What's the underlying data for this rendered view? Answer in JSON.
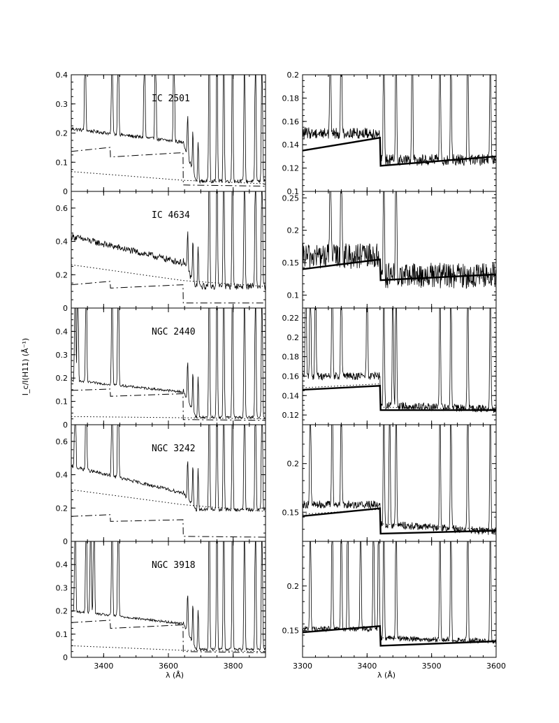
{
  "figure": {
    "ylabel": "I_c/I(H11) (Å⁻¹)",
    "xlabel_left": "λ (Å)",
    "xlabel_right": "λ (Å)"
  },
  "chart_data": [
    {
      "type": "line",
      "column": "left",
      "row": 0,
      "label": "IC 2501",
      "xlim": [
        3300,
        3900
      ],
      "ylim": [
        0,
        0.4
      ],
      "yticks": [
        0,
        0.1,
        0.2,
        0.3,
        0.4
      ],
      "ytick_labels": [
        "0",
        "0.1",
        "0.2",
        "0.3",
        "0.4"
      ],
      "xticks": [
        3400,
        3600,
        3800
      ],
      "xtick_labels": [],
      "spectrum": {
        "cont_start": 0.215,
        "cont_jump_3646": 0.168,
        "cont_end": 0.035,
        "noise": 0.006
      },
      "emission_lines": [
        3343,
        3426,
        3445,
        3526,
        3560,
        3617,
        3726,
        3750,
        3771,
        3798,
        3835,
        3869,
        3889
      ],
      "series": [
        {
          "style": "dotted",
          "x": [
            3300,
            3645,
            3900
          ],
          "y": [
            0.068,
            0.038,
            0.026
          ]
        },
        {
          "style": "dash-dot",
          "x": [
            3300,
            3420,
            3421,
            3645,
            3646,
            3900
          ],
          "y": [
            0.137,
            0.151,
            0.118,
            0.133,
            0.022,
            0.018
          ]
        }
      ]
    },
    {
      "type": "line",
      "column": "left",
      "row": 1,
      "label": "IC 4634",
      "xlim": [
        3300,
        3900
      ],
      "ylim": [
        0,
        0.7
      ],
      "yticks": [
        0,
        0.2,
        0.4,
        0.6
      ],
      "ytick_labels": [
        "0",
        "0.2",
        "0.4",
        "0.6"
      ],
      "xticks": [
        3400,
        3600,
        3800
      ],
      "xtick_labels": [],
      "spectrum": {
        "cont_start": 0.43,
        "cont_jump_3646": 0.27,
        "cont_end": 0.13,
        "noise": 0.02
      },
      "emission_lines": [
        3726,
        3750,
        3771,
        3798,
        3835,
        3869,
        3889
      ],
      "series": [
        {
          "style": "dotted",
          "x": [
            3300,
            3645,
            3900
          ],
          "y": [
            0.26,
            0.165,
            0.13
          ]
        },
        {
          "style": "dash-dot",
          "x": [
            3300,
            3420,
            3421,
            3645,
            3646,
            3900
          ],
          "y": [
            0.14,
            0.16,
            0.12,
            0.14,
            0.03,
            0.03
          ]
        }
      ]
    },
    {
      "type": "line",
      "column": "left",
      "row": 2,
      "label": "NGC 2440",
      "xlim": [
        3300,
        3900
      ],
      "ylim": [
        0,
        0.5
      ],
      "yticks": [
        0,
        0.1,
        0.2,
        0.3,
        0.4
      ],
      "ytick_labels": [
        "0",
        "0.1",
        "0.2",
        "0.3",
        "0.4"
      ],
      "xticks": [
        3400,
        3600,
        3800
      ],
      "xtick_labels": [],
      "spectrum": {
        "cont_start": 0.19,
        "cont_jump_3646": 0.14,
        "cont_end": 0.032,
        "noise": 0.005
      },
      "emission_lines": [
        3312,
        3320,
        3346,
        3426,
        3445,
        3726,
        3750,
        3771,
        3798,
        3835,
        3869,
        3889
      ],
      "series": [
        {
          "style": "dotted",
          "x": [
            3300,
            3645,
            3900
          ],
          "y": [
            0.035,
            0.03,
            0.025
          ]
        },
        {
          "style": "dash-dot",
          "x": [
            3300,
            3420,
            3421,
            3645,
            3646,
            3900
          ],
          "y": [
            0.147,
            0.153,
            0.122,
            0.133,
            0.022,
            0.019
          ]
        }
      ]
    },
    {
      "type": "line",
      "column": "left",
      "row": 3,
      "label": "NGC 3242",
      "xlim": [
        3300,
        3900
      ],
      "ylim": [
        0,
        0.7
      ],
      "yticks": [
        0,
        0.2,
        0.4,
        0.6
      ],
      "ytick_labels": [
        "0",
        "0.2",
        "0.4",
        "0.6"
      ],
      "xticks": [
        3400,
        3600,
        3800
      ],
      "xtick_labels": [],
      "spectrum": {
        "cont_start": 0.45,
        "cont_jump_3646": 0.29,
        "cont_end": 0.19,
        "noise": 0.01
      },
      "emission_lines": [
        3312,
        3346,
        3426,
        3445,
        3726,
        3750,
        3771,
        3798,
        3835,
        3869,
        3889
      ],
      "series": [
        {
          "style": "dotted",
          "x": [
            3300,
            3645,
            3900
          ],
          "y": [
            0.31,
            0.22,
            0.18
          ]
        },
        {
          "style": "dash-dot",
          "x": [
            3300,
            3420,
            3421,
            3645,
            3646,
            3900
          ],
          "y": [
            0.15,
            0.16,
            0.12,
            0.13,
            0.03,
            0.025
          ]
        }
      ]
    },
    {
      "type": "line",
      "column": "left",
      "row": 4,
      "label": "NGC 3918",
      "xlim": [
        3300,
        3900
      ],
      "ylim": [
        0,
        0.5
      ],
      "yticks": [
        0,
        0.1,
        0.2,
        0.3,
        0.4
      ],
      "ytick_labels": [
        "0",
        "0.1",
        "0.2",
        "0.3",
        "0.4"
      ],
      "xticks": [
        3400,
        3600,
        3800
      ],
      "xtick_labels": [
        "3400",
        "3600",
        "3800"
      ],
      "spectrum": {
        "cont_start": 0.2,
        "cont_jump_3646": 0.145,
        "cont_end": 0.035,
        "noise": 0.005
      },
      "emission_lines": [
        3312,
        3346,
        3360,
        3370,
        3426,
        3445,
        3726,
        3750,
        3771,
        3798,
        3835,
        3869,
        3889
      ],
      "series": [
        {
          "style": "dotted",
          "x": [
            3300,
            3645,
            3900
          ],
          "y": [
            0.05,
            0.03,
            0.025
          ]
        },
        {
          "style": "dash-dot",
          "x": [
            3300,
            3420,
            3421,
            3645,
            3646,
            3900
          ],
          "y": [
            0.15,
            0.16,
            0.125,
            0.14,
            0.025,
            0.02
          ]
        }
      ]
    },
    {
      "type": "line",
      "column": "right",
      "row": 0,
      "label": "",
      "xlim": [
        3300,
        3600
      ],
      "ylim": [
        0.1,
        0.2
      ],
      "yticks": [
        0.1,
        0.12,
        0.14,
        0.16,
        0.18,
        0.2
      ],
      "ytick_labels": [
        "0.1",
        "0.12",
        "0.14",
        "0.16",
        "0.18",
        "0.2"
      ],
      "xticks": [
        3300,
        3400,
        3500,
        3600
      ],
      "xtick_labels": [],
      "spectrum": {
        "base": 0.15,
        "after_jump": 0.127,
        "end": 0.127,
        "noise": 0.005
      },
      "emission_lines": [
        3343,
        3360,
        3426,
        3445,
        3470,
        3513,
        3530,
        3556,
        3591
      ],
      "series": [
        {
          "style": "thick",
          "x": [
            3300,
            3420,
            3421,
            3600
          ],
          "y": [
            0.135,
            0.146,
            0.122,
            0.13
          ]
        }
      ]
    },
    {
      "type": "line",
      "column": "right",
      "row": 1,
      "label": "",
      "xlim": [
        3300,
        3600
      ],
      "ylim": [
        0.08,
        0.26
      ],
      "yticks": [
        0.1,
        0.15,
        0.2,
        0.25
      ],
      "ytick_labels": [
        "0.1",
        "0.15",
        "0.2",
        "0.25"
      ],
      "xticks": [
        3300,
        3400,
        3500,
        3600
      ],
      "xtick_labels": [],
      "spectrum": {
        "base": 0.16,
        "after_jump": 0.13,
        "end": 0.13,
        "noise": 0.02
      },
      "emission_lines": [
        3343,
        3360,
        3426,
        3445
      ],
      "series": [
        {
          "style": "thick",
          "x": [
            3300,
            3420,
            3421,
            3600
          ],
          "y": [
            0.14,
            0.155,
            0.123,
            0.132
          ]
        }
      ]
    },
    {
      "type": "line",
      "column": "right",
      "row": 2,
      "label": "",
      "xlim": [
        3300,
        3600
      ],
      "ylim": [
        0.11,
        0.23
      ],
      "yticks": [
        0.12,
        0.14,
        0.16,
        0.18,
        0.2,
        0.22
      ],
      "ytick_labels": [
        "0.12",
        "0.14",
        "0.16",
        "0.18",
        "0.2",
        "0.22"
      ],
      "xticks": [
        3300,
        3400,
        3500,
        3600
      ],
      "xtick_labels": [],
      "spectrum": {
        "base": 0.16,
        "after_jump": 0.13,
        "end": 0.126,
        "noise": 0.004
      },
      "emission_lines": [
        3305,
        3312,
        3320,
        3346,
        3360,
        3400,
        3426,
        3440,
        3445,
        3513,
        3530,
        3556,
        3591
      ],
      "series": [
        {
          "style": "dotted",
          "x": [
            3300,
            3420,
            3421,
            3600
          ],
          "y": [
            0.148,
            0.152,
            0.128,
            0.126
          ]
        },
        {
          "style": "thick",
          "x": [
            3300,
            3420,
            3421,
            3600
          ],
          "y": [
            0.146,
            0.15,
            0.125,
            0.125
          ]
        }
      ]
    },
    {
      "type": "line",
      "column": "right",
      "row": 3,
      "label": "",
      "xlim": [
        3300,
        3600
      ],
      "ylim": [
        0.12,
        0.24
      ],
      "yticks": [
        0.15,
        0.2
      ],
      "ytick_labels": [
        "0.15",
        "0.2"
      ],
      "xticks": [
        3300,
        3400,
        3500,
        3600
      ],
      "xtick_labels": [],
      "spectrum": {
        "base": 0.158,
        "after_jump": 0.138,
        "end": 0.13,
        "noise": 0.004
      },
      "emission_lines": [
        3312,
        3346,
        3360,
        3426,
        3435,
        3445,
        3513,
        3530,
        3556,
        3591
      ],
      "series": [
        {
          "style": "dotted",
          "x": [
            3300,
            3420,
            3421,
            3600
          ],
          "y": [
            0.148,
            0.153,
            0.138,
            0.132
          ]
        },
        {
          "style": "thick",
          "x": [
            3300,
            3420,
            3421,
            3600
          ],
          "y": [
            0.146,
            0.154,
            0.128,
            0.131
          ]
        }
      ]
    },
    {
      "type": "line",
      "column": "right",
      "row": 4,
      "label": "",
      "xlim": [
        3300,
        3600
      ],
      "ylim": [
        0.12,
        0.25
      ],
      "yticks": [
        0.15,
        0.2
      ],
      "ytick_labels": [
        "0.15",
        "0.2"
      ],
      "xticks": [
        3300,
        3400,
        3500,
        3600
      ],
      "xtick_labels": [
        "3300",
        "3400",
        "3500",
        "3600"
      ],
      "spectrum": {
        "base": 0.152,
        "after_jump": 0.142,
        "end": 0.138,
        "noise": 0.003
      },
      "emission_lines": [
        3312,
        3346,
        3360,
        3370,
        3390,
        3410,
        3418,
        3426,
        3445,
        3513,
        3530,
        3556,
        3591
      ],
      "series": [
        {
          "style": "dotted",
          "x": [
            3300,
            3420,
            3421,
            3600
          ],
          "y": [
            0.149,
            0.155,
            0.142,
            0.137
          ]
        },
        {
          "style": "thick",
          "x": [
            3300,
            3420,
            3421,
            3600
          ],
          "y": [
            0.148,
            0.155,
            0.133,
            0.138
          ]
        }
      ]
    }
  ]
}
